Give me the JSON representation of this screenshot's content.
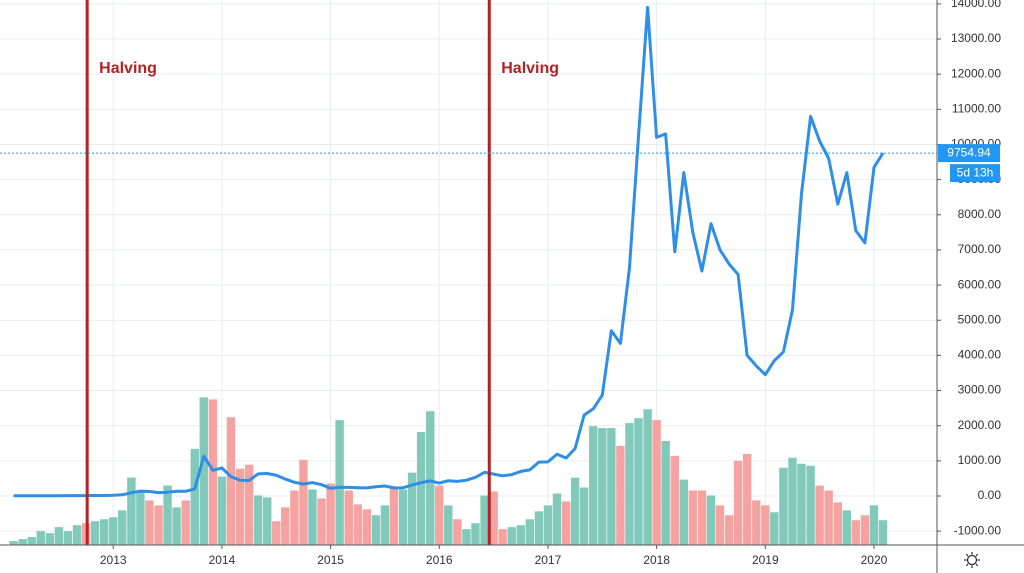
{
  "chart_data": {
    "type": "line",
    "x": [
      2012.083,
      2012.167,
      2012.25,
      2012.333,
      2012.417,
      2012.5,
      2012.583,
      2012.667,
      2012.75,
      2012.833,
      2012.917,
      2013,
      2013.083,
      2013.167,
      2013.25,
      2013.333,
      2013.417,
      2013.5,
      2013.583,
      2013.667,
      2013.75,
      2013.833,
      2013.917,
      2014,
      2014.083,
      2014.167,
      2014.25,
      2014.333,
      2014.417,
      2014.5,
      2014.583,
      2014.667,
      2014.75,
      2014.833,
      2014.917,
      2015,
      2015.083,
      2015.167,
      2015.25,
      2015.333,
      2015.417,
      2015.5,
      2015.583,
      2015.667,
      2015.75,
      2015.833,
      2015.917,
      2016,
      2016.083,
      2016.167,
      2016.25,
      2016.333,
      2016.417,
      2016.5,
      2016.583,
      2016.667,
      2016.75,
      2016.833,
      2016.917,
      2017,
      2017.083,
      2017.167,
      2017.25,
      2017.333,
      2017.417,
      2017.5,
      2017.583,
      2017.667,
      2017.75,
      2017.833,
      2017.917,
      2018,
      2018.083,
      2018.167,
      2018.25,
      2018.333,
      2018.417,
      2018.5,
      2018.583,
      2018.667,
      2018.75,
      2018.833,
      2018.917,
      2019,
      2019.083,
      2019.167,
      2019.25,
      2019.333,
      2019.417,
      2019.5,
      2019.583,
      2019.667,
      2019.75,
      2019.833,
      2019.917,
      2020,
      2020.083
    ],
    "series": [
      {
        "color": "#2f8ee5",
        "values": [
          5,
          5,
          5,
          5,
          7,
          9,
          10,
          12,
          11,
          13,
          14,
          20,
          33,
          93,
          139,
          129,
          97,
          106,
          135,
          133,
          198,
          1130,
          732,
          800,
          550,
          450,
          440,
          630,
          640,
          590,
          480,
          390,
          340,
          380,
          320,
          220,
          250,
          245,
          235,
          230,
          262,
          285,
          230,
          236,
          314,
          378,
          430,
          368,
          436,
          416,
          448,
          531,
          673,
          624,
          575,
          609,
          700,
          742,
          963,
          970,
          1190,
          1080,
          1350,
          2300,
          2480,
          2870,
          4700,
          4340,
          6470,
          10230,
          13900,
          10200,
          10300,
          6950,
          9200,
          7500,
          6400,
          7750,
          7000,
          6600,
          6300,
          4000,
          3700,
          3450,
          3850,
          4100,
          5300,
          8600,
          10800,
          10100,
          9600,
          8300,
          9200,
          7550,
          7200,
          9350,
          9754.94
        ]
      },
      {
        "axis": "y2",
        "type": "bar",
        "colors": {
          "up": "#80c9bb",
          "down": "#f4a3a1"
        },
        "values": [
          4,
          6,
          8,
          14,
          12,
          18,
          14,
          20,
          22,
          24,
          26,
          28,
          35,
          68,
          55,
          45,
          40,
          60,
          38,
          45,
          97,
          149,
          147,
          69,
          129,
          77,
          81,
          50,
          48,
          24,
          38,
          55,
          86,
          56,
          47,
          62,
          126,
          55,
          41,
          36,
          30,
          40,
          58,
          56,
          73,
          114,
          135,
          60,
          40,
          26,
          16,
          22,
          50,
          54,
          16,
          18,
          20,
          26,
          34,
          40,
          52,
          44,
          68,
          58,
          120,
          118,
          118,
          100,
          123,
          128,
          137,
          126,
          105,
          90,
          66,
          55,
          55,
          50,
          40,
          30,
          85,
          92,
          45,
          40,
          33,
          78,
          88,
          82,
          80,
          60,
          55,
          43,
          35,
          25,
          30,
          40,
          25
        ]
      }
    ],
    "xlim": [
      2012.05,
      2020.58
    ],
    "xticks": [
      2013,
      2014,
      2015,
      2016,
      2017,
      2018,
      2019,
      2020
    ],
    "ylim": [
      -1394,
      14110
    ],
    "yticks": [
      {
        "value": -1000,
        "label": "-1000.00"
      },
      {
        "value": 0,
        "label": "0.00"
      },
      {
        "value": 1000,
        "label": "1000.00"
      },
      {
        "value": 2000,
        "label": "2000.00"
      },
      {
        "value": 3000,
        "label": "3000.00"
      },
      {
        "value": 4000,
        "label": "4000.00"
      },
      {
        "value": 5000,
        "label": "5000.00"
      },
      {
        "value": 6000,
        "label": "6000.00"
      },
      {
        "value": 7000,
        "label": "7000.00"
      },
      {
        "value": 8000,
        "label": "8000.00"
      },
      {
        "value": 9000,
        "label": "9000.00"
      },
      {
        "value": 10000,
        "label": "10000.00"
      },
      {
        "value": 11000,
        "label": "11000.00"
      },
      {
        "value": 12000,
        "label": "12000.00"
      },
      {
        "value": 13000,
        "label": "13000.00"
      },
      {
        "value": 14000,
        "label": "14000.00"
      }
    ],
    "y2lim": [
      0,
      550
    ],
    "grid": true,
    "annotations": [
      {
        "text": "Halving",
        "x": 2012.76
      },
      {
        "text": "Halving",
        "x": 2016.46
      }
    ],
    "last_price": {
      "value": 9754.94,
      "countdown": "5d 13h"
    }
  }
}
